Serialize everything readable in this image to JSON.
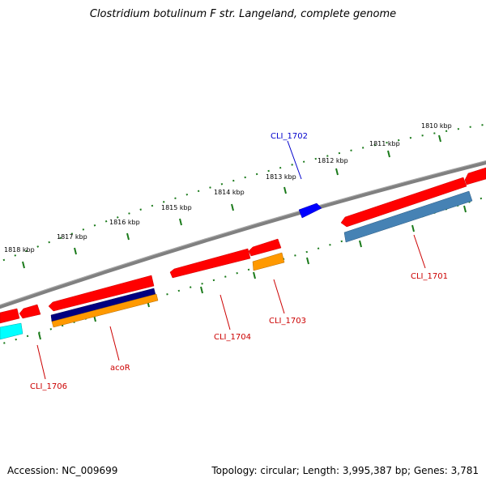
{
  "title": "Clostridium botulinum F str. Langeland, complete genome",
  "footer": {
    "accession": "Accession: NC_009699",
    "topology": "Topology: circular; Length: 3,995,387 bp; Genes: 3,781"
  },
  "ticks": [
    "1810 kbp",
    "1811 kbp",
    "1812 kbp",
    "1813 kbp",
    "1814 kbp",
    "1815 kbp",
    "1816 kbp",
    "1817 kbp",
    "1818 kbp"
  ],
  "gene_labels": {
    "cli_1702": "CLI_1702",
    "cli_1701": "CLI_1701",
    "cli_1703": "CLI_1703",
    "cli_1704": "CLI_1704",
    "acor": "acoR",
    "cli_1706": "CLI_1706"
  },
  "colors": {
    "backbone": "#808080",
    "tick": "#1a7a1a",
    "gene_red": "#ff0000",
    "gene_blue": "#0000ff",
    "gene_navy": "#000080",
    "gene_orange": "#ff9900",
    "gene_steelblue": "#4682b4",
    "gene_cyan": "#00ffff",
    "label_red": "#cc0000",
    "label_blue": "#0000cc"
  }
}
